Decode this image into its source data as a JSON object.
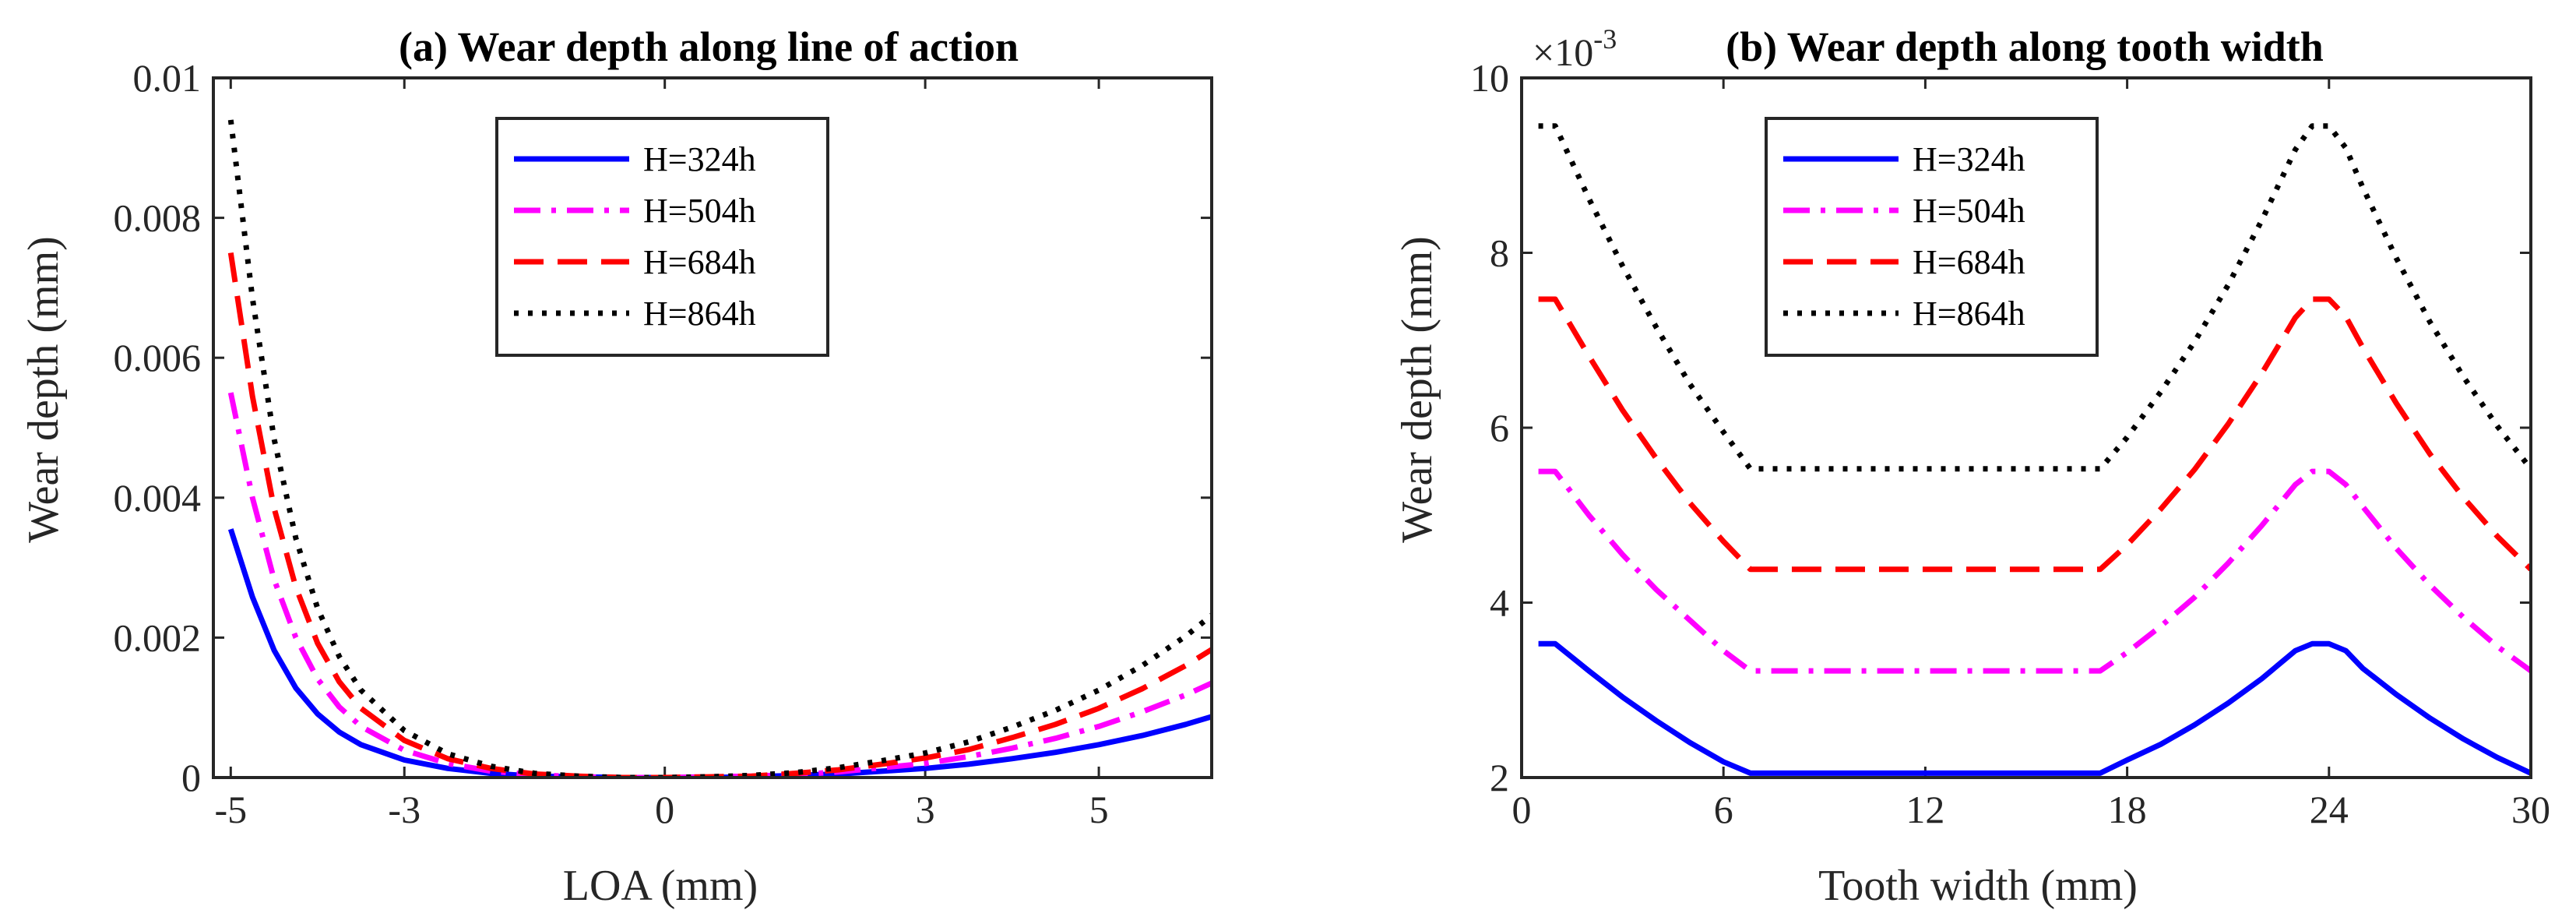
{
  "chart_data": [
    {
      "type": "line",
      "title": "(a) Wear depth along line of action",
      "xlabel": "LOA (mm)",
      "ylabel": "Wear depth (mm)",
      "xlim": [
        -5.2,
        6.3
      ],
      "ylim": [
        0,
        0.01
      ],
      "xticks": [
        -5,
        -3,
        0,
        3,
        5
      ],
      "yticks": [
        0,
        0.002,
        0.004,
        0.006,
        0.008,
        0.01
      ],
      "ytick_labels": [
        "0",
        "0.002",
        "0.004",
        "0.006",
        "0.008",
        "0.01"
      ],
      "legend_position": "top-center",
      "x": [
        -5.0,
        -4.75,
        -4.5,
        -4.25,
        -4.0,
        -3.75,
        -3.5,
        -3.0,
        -2.5,
        -2.0,
        -1.5,
        -1.0,
        -0.5,
        0.0,
        0.5,
        1.0,
        1.5,
        2.0,
        2.5,
        3.0,
        3.5,
        4.0,
        4.5,
        5.0,
        5.5,
        6.0,
        6.3
      ],
      "series": [
        {
          "name": "H=324h",
          "color": "#0000ff",
          "dash": "solid",
          "values": [
            0.00355,
            0.00258,
            0.00182,
            0.00128,
            0.00091,
            0.00065,
            0.00047,
            0.00025,
            0.00013,
            6e-05,
            2e-05,
            1e-05,
            0.0,
            0.0,
            0.0,
            1e-05,
            3e-05,
            5e-05,
            9e-05,
            0.00013,
            0.00019,
            0.00027,
            0.00036,
            0.00047,
            0.0006,
            0.00076,
            0.00087
          ]
        },
        {
          "name": "H=504h",
          "color": "#ff00ff",
          "dash": "dashdot",
          "values": [
            0.0055,
            0.004,
            0.00283,
            0.002,
            0.00141,
            0.00101,
            0.00073,
            0.00039,
            0.0002,
            9e-05,
            4e-05,
            1e-05,
            0.0,
            0.0,
            1e-05,
            2e-05,
            4e-05,
            8e-05,
            0.00014,
            0.0002,
            0.0003,
            0.00042,
            0.00056,
            0.00073,
            0.00094,
            0.00118,
            0.00135
          ]
        },
        {
          "name": "H=684h",
          "color": "#ff0000",
          "dash": "dashed",
          "values": [
            0.0075,
            0.00545,
            0.00385,
            0.00272,
            0.00192,
            0.00137,
            0.00099,
            0.00053,
            0.00027,
            0.00013,
            5e-05,
            2e-05,
            0.0,
            0.0,
            1e-05,
            2e-05,
            6e-05,
            0.00011,
            0.00019,
            0.00028,
            0.0004,
            0.00057,
            0.00076,
            0.00099,
            0.00127,
            0.0016,
            0.00183
          ]
        },
        {
          "name": "H=864h",
          "color": "#000000",
          "dash": "dotted",
          "values": [
            0.0094,
            0.00685,
            0.00484,
            0.00342,
            0.00242,
            0.00173,
            0.00125,
            0.00067,
            0.00034,
            0.00016,
            6e-05,
            2e-05,
            0.0,
            0.0,
            1e-05,
            3e-05,
            7e-05,
            0.00014,
            0.00024,
            0.00035,
            0.00051,
            0.00072,
            0.00096,
            0.00125,
            0.0016,
            0.00202,
            0.00232
          ]
        }
      ]
    },
    {
      "type": "line",
      "title": "(b) Wear depth along tooth width",
      "xlabel": "Tooth width (mm)",
      "ylabel": "Wear depth (mm)",
      "y_multiplier": "×10",
      "y_exponent": "-3",
      "xlim": [
        0,
        30
      ],
      "ylim": [
        2,
        10
      ],
      "xticks": [
        0,
        6,
        12,
        18,
        24,
        30
      ],
      "yticks": [
        2,
        4,
        6,
        8,
        10
      ],
      "legend_position": "top-left",
      "x": [
        0.5,
        1.0,
        2.0,
        3.0,
        4.0,
        5.0,
        6.0,
        6.8,
        8.0,
        10.0,
        12.0,
        14.0,
        16.0,
        17.2,
        18.0,
        19.0,
        20.0,
        21.0,
        22.0,
        23.0,
        23.5,
        24.0,
        24.5,
        25.0,
        26.0,
        27.0,
        28.0,
        29.0,
        30.0
      ],
      "series": [
        {
          "name": "H=324h",
          "color": "#0000ff",
          "dash": "solid",
          "values": [
            3.53,
            3.53,
            3.22,
            2.92,
            2.65,
            2.4,
            2.18,
            2.05,
            2.05,
            2.05,
            2.05,
            2.05,
            2.05,
            2.05,
            2.2,
            2.38,
            2.6,
            2.85,
            3.13,
            3.45,
            3.53,
            3.53,
            3.45,
            3.25,
            2.95,
            2.68,
            2.44,
            2.23,
            2.05
          ]
        },
        {
          "name": "H=504h",
          "color": "#ff00ff",
          "dash": "dashdot",
          "values": [
            5.5,
            5.5,
            5.0,
            4.55,
            4.15,
            3.8,
            3.45,
            3.22,
            3.22,
            3.22,
            3.22,
            3.22,
            3.22,
            3.22,
            3.43,
            3.73,
            4.06,
            4.45,
            4.88,
            5.35,
            5.5,
            5.5,
            5.35,
            5.1,
            4.62,
            4.2,
            3.83,
            3.5,
            3.22
          ]
        },
        {
          "name": "H=684h",
          "color": "#ff0000",
          "dash": "dashed",
          "values": [
            7.47,
            7.47,
            6.82,
            6.2,
            5.65,
            5.14,
            4.7,
            4.38,
            4.38,
            4.38,
            4.38,
            4.38,
            4.38,
            4.38,
            4.66,
            5.07,
            5.52,
            6.04,
            6.62,
            7.26,
            7.47,
            7.47,
            7.27,
            6.92,
            6.28,
            5.7,
            5.2,
            4.76,
            4.38
          ]
        },
        {
          "name": "H=864h",
          "color": "#000000",
          "dash": "dotted",
          "values": [
            9.45,
            9.45,
            8.62,
            7.85,
            7.15,
            6.5,
            5.95,
            5.53,
            5.53,
            5.53,
            5.53,
            5.53,
            5.53,
            5.53,
            5.89,
            6.41,
            6.98,
            7.63,
            8.37,
            9.18,
            9.45,
            9.45,
            9.2,
            8.75,
            7.94,
            7.21,
            6.58,
            6.02,
            5.53
          ]
        }
      ]
    }
  ]
}
